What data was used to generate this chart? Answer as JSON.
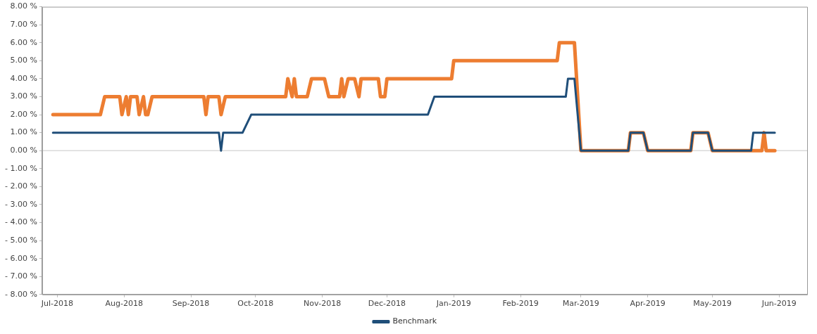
{
  "chart_data": {
    "type": "line",
    "xlim": [
      "2018-06-24",
      "2019-06-14"
    ],
    "xticks": [
      {
        "value": "2018-07-01",
        "label": "Jul-2018"
      },
      {
        "value": "2018-08-01",
        "label": "Aug-2018"
      },
      {
        "value": "2018-09-01",
        "label": "Sep-2018"
      },
      {
        "value": "2018-10-01",
        "label": "Oct-2018"
      },
      {
        "value": "2018-11-01",
        "label": "Nov-2018"
      },
      {
        "value": "2018-12-01",
        "label": "Dec-2018"
      },
      {
        "value": "2019-01-01",
        "label": "Jan-2019"
      },
      {
        "value": "2019-02-01",
        "label": "Feb-2019"
      },
      {
        "value": "2019-03-01",
        "label": "Mar-2019"
      },
      {
        "value": "2019-04-01",
        "label": "Apr-2019"
      },
      {
        "value": "2019-05-01",
        "label": "May-2019"
      },
      {
        "value": "2019-06-01",
        "label": "Jun-2019"
      }
    ],
    "ylim": [
      -8,
      8
    ],
    "yticks": [
      {
        "value": -8,
        "label": "- 8.00 %"
      },
      {
        "value": -7,
        "label": "- 7.00 %"
      },
      {
        "value": -6,
        "label": "- 6.00 %"
      },
      {
        "value": -5,
        "label": "- 5.00 %"
      },
      {
        "value": -4,
        "label": "- 4.00 %"
      },
      {
        "value": -3,
        "label": "- 3.00 %"
      },
      {
        "value": -2,
        "label": "- 2.00 %"
      },
      {
        "value": -1,
        "label": "- 1.00 %"
      },
      {
        "value": 0,
        "label": "0.00 %"
      },
      {
        "value": 1,
        "label": "1.00 %"
      },
      {
        "value": 2,
        "label": "2.00 %"
      },
      {
        "value": 3,
        "label": "3.00 %"
      },
      {
        "value": 4,
        "label": "4.00 %"
      },
      {
        "value": 5,
        "label": "5.00 %"
      },
      {
        "value": 6,
        "label": "6.00 %"
      },
      {
        "value": 7,
        "label": "7.00 %"
      },
      {
        "value": 8,
        "label": "8.00 %"
      }
    ],
    "grid": false,
    "legend": "bottom",
    "marker": "none",
    "line_style": "solid",
    "ref_lines": [
      {
        "axis": "y",
        "value": 0,
        "color": "#c8c8c8"
      }
    ],
    "series": [
      {
        "name": "Benchmark",
        "color": "#1f4e79",
        "x": [
          "2018-06-29",
          "2018-09-14",
          "2018-09-15",
          "2018-09-16",
          "2018-09-25",
          "2018-09-29",
          "2018-12-20",
          "2018-12-23",
          "2019-02-22",
          "2019-02-23",
          "2019-02-26",
          "2019-03-01",
          "2019-03-23",
          "2019-03-24",
          "2019-03-30",
          "2019-04-01",
          "2019-04-21",
          "2019-04-22",
          "2019-04-29",
          "2019-05-01",
          "2019-05-19",
          "2019-05-20",
          "2019-05-30"
        ],
        "values": [
          1,
          1,
          0,
          1,
          1,
          2,
          2,
          3,
          3,
          4,
          4,
          0,
          0,
          1,
          1,
          0,
          0,
          1,
          1,
          0,
          0,
          1,
          1
        ]
      },
      {
        "color": "#ed7d31",
        "x": [
          "2018-06-29",
          "2018-07-21",
          "2018-07-23",
          "2018-07-30",
          "2018-07-31",
          "2018-08-02",
          "2018-08-03",
          "2018-08-04",
          "2018-08-07",
          "2018-08-08",
          "2018-08-10",
          "2018-08-11",
          "2018-08-12",
          "2018-08-14",
          "2018-09-07",
          "2018-09-08",
          "2018-09-09",
          "2018-09-14",
          "2018-09-15",
          "2018-09-17",
          "2018-10-15",
          "2018-10-16",
          "2018-10-18",
          "2018-10-19",
          "2018-10-20",
          "2018-10-25",
          "2018-10-27",
          "2018-11-02",
          "2018-11-04",
          "2018-11-09",
          "2018-11-10",
          "2018-11-11",
          "2018-11-13",
          "2018-11-16",
          "2018-11-18",
          "2018-11-19",
          "2018-11-27",
          "2018-11-28",
          "2018-11-30",
          "2018-12-01",
          "2018-12-31",
          "2019-01-01",
          "2019-02-18",
          "2019-02-19",
          "2019-02-26",
          "2019-03-01",
          "2019-03-23",
          "2019-03-24",
          "2019-03-30",
          "2019-04-01",
          "2019-04-21",
          "2019-04-22",
          "2019-04-29",
          "2019-05-01",
          "2019-05-24",
          "2019-05-25",
          "2019-05-26",
          "2019-05-30"
        ],
        "values": [
          2,
          2,
          3,
          3,
          2,
          3,
          2,
          3,
          3,
          2,
          3,
          2,
          2,
          3,
          3,
          2,
          3,
          3,
          2,
          3,
          3,
          4,
          3,
          4,
          3,
          3,
          4,
          4,
          3,
          3,
          4,
          3,
          4,
          4,
          3,
          4,
          4,
          3,
          3,
          4,
          4,
          5,
          5,
          6,
          6,
          0,
          0,
          1,
          1,
          0,
          0,
          1,
          1,
          0,
          0,
          1,
          0,
          0
        ]
      }
    ]
  }
}
